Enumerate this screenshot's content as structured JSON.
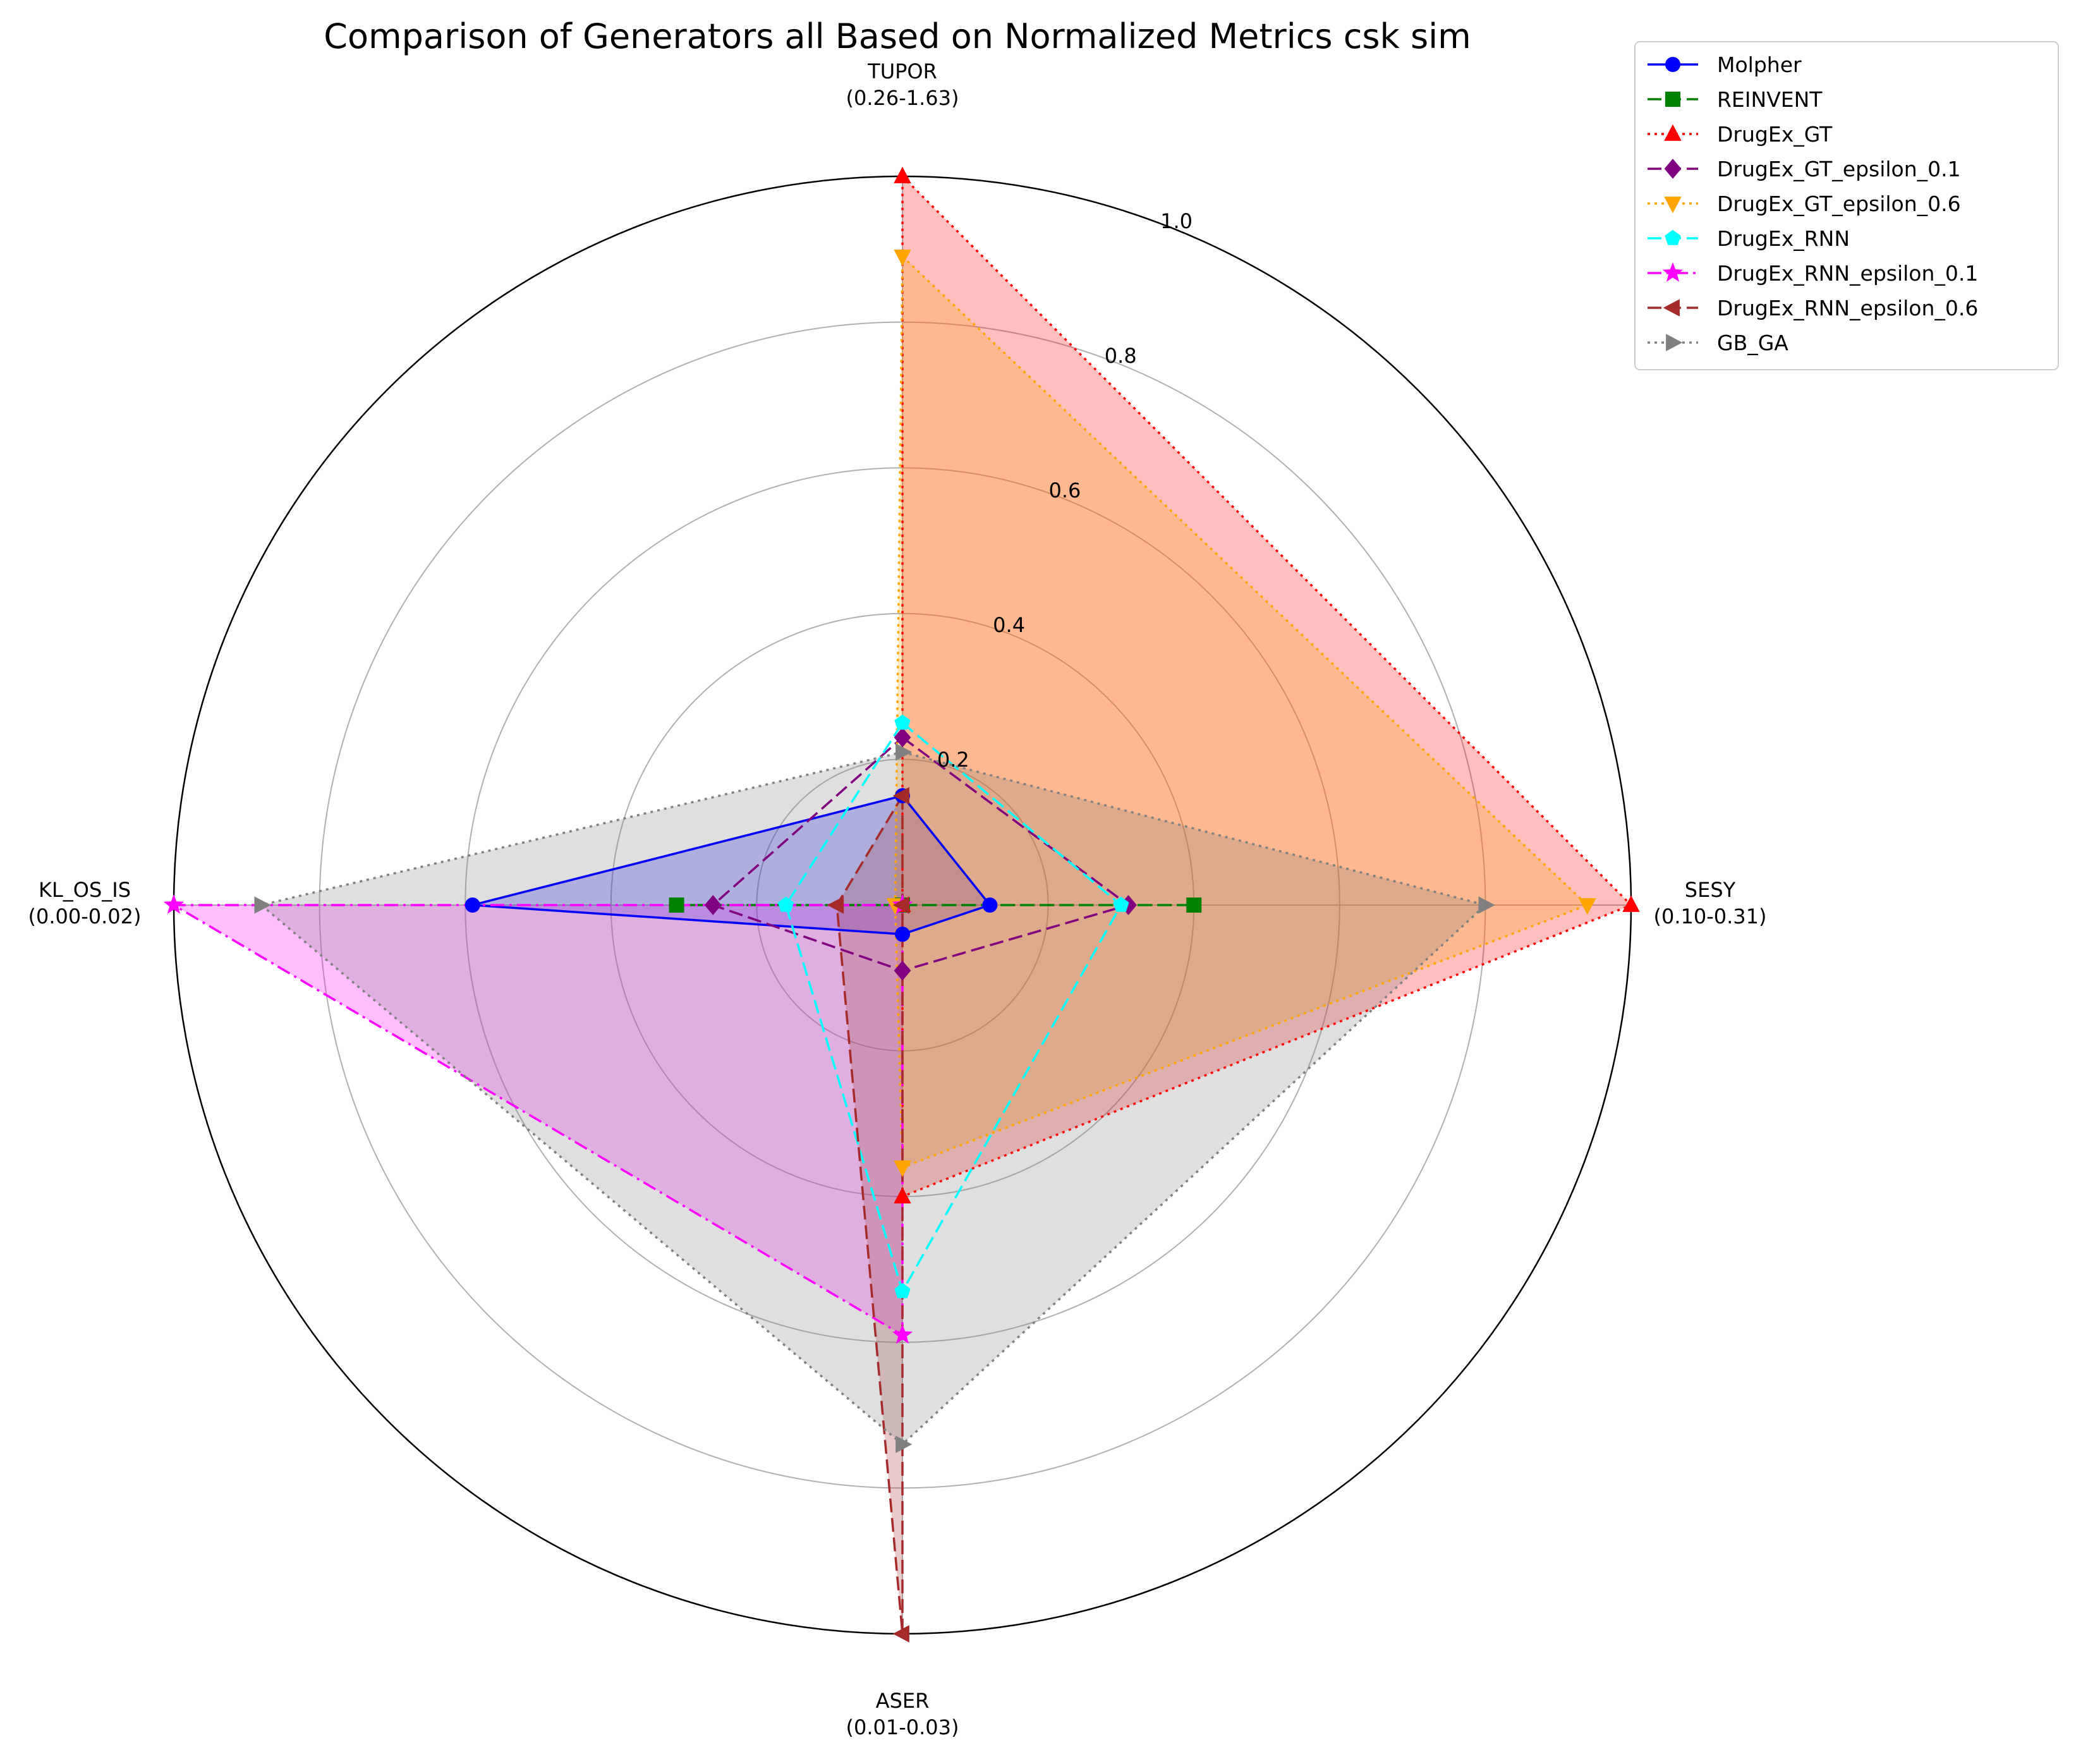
{
  "chart_data": {
    "type": "radar",
    "title": "Comparison of Generators all Based on Normalized Metrics csk sim",
    "axes": [
      {
        "name": "TUPOR",
        "range_label": "(0.26-1.63)"
      },
      {
        "name": "SESY",
        "range_label": "(0.10-0.31)"
      },
      {
        "name": "ASER",
        "range_label": "(0.01-0.03)"
      },
      {
        "name": "KL_OS_IS",
        "range_label": "(0.00-0.02)"
      }
    ],
    "rlim": [
      0,
      1
    ],
    "radial_ticks": [
      "0.2",
      "0.4",
      "0.6",
      "0.8",
      "1.0"
    ],
    "radial_tick_values": [
      0.2,
      0.4,
      0.6,
      0.8,
      1.0
    ],
    "grid": true,
    "legend_position": "top-right",
    "series": [
      {
        "name": "Molpher",
        "values": [
          0.15,
          0.12,
          0.04,
          0.59
        ],
        "color": "#0000ff",
        "dash": "solid",
        "marker": "circle",
        "fill": true
      },
      {
        "name": "REINVENT",
        "values": [
          0.0,
          0.4,
          0.0,
          0.31
        ],
        "color": "#008000",
        "dash": "dashed",
        "marker": "square",
        "fill": false
      },
      {
        "name": "DrugEx_GT",
        "values": [
          1.0,
          1.0,
          0.4,
          0.0
        ],
        "color": "#ff0000",
        "dash": "dotted",
        "marker": "triangle-up",
        "fill": true
      },
      {
        "name": "DrugEx_GT_epsilon_0.1",
        "values": [
          0.23,
          0.31,
          0.09,
          0.26
        ],
        "color": "#800080",
        "dash": "dashed",
        "marker": "diamond",
        "fill": false
      },
      {
        "name": "DrugEx_GT_epsilon_0.6",
        "values": [
          0.89,
          0.94,
          0.36,
          0.01
        ],
        "color": "#ffa500",
        "dash": "dotted",
        "marker": "triangle-down",
        "fill": true
      },
      {
        "name": "DrugEx_RNN",
        "values": [
          0.25,
          0.3,
          0.53,
          0.16
        ],
        "color": "#00ffff",
        "dash": "dashed",
        "marker": "pentagon",
        "fill": false
      },
      {
        "name": "DrugEx_RNN_epsilon_0.1",
        "values": [
          0.0,
          0.0,
          0.59,
          1.0
        ],
        "color": "#ff00ff",
        "dash": "dashdot",
        "marker": "star",
        "fill": true
      },
      {
        "name": "DrugEx_RNN_epsilon_0.6",
        "values": [
          0.15,
          0.0,
          1.0,
          0.09
        ],
        "color": "#a52a2a",
        "dash": "dashed",
        "marker": "triangle-left",
        "fill": true
      },
      {
        "name": "GB_GA",
        "values": [
          0.21,
          0.8,
          0.74,
          0.88
        ],
        "color": "#808080",
        "dash": "dotted",
        "marker": "triangle-right",
        "fill": true
      }
    ]
  }
}
